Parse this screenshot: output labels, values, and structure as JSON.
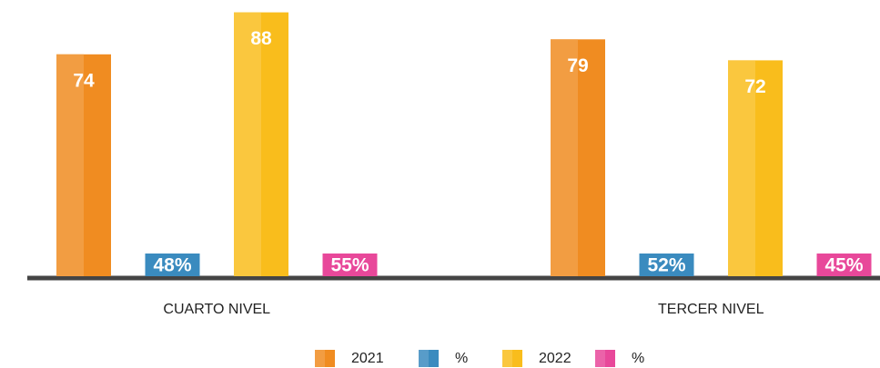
{
  "chart_data": {
    "type": "bar",
    "categories": [
      "CUARTO NIVEL",
      "TERCER NIVEL"
    ],
    "series": [
      {
        "name": "2021",
        "color": "#f08c21",
        "values": [
          74,
          79
        ]
      },
      {
        "name": "%",
        "color": "#3a8bbf",
        "values": [
          48,
          52
        ],
        "value_labels": [
          "48%",
          "52%"
        ]
      },
      {
        "name": "2022",
        "color": "#f9bd1c",
        "values": [
          88,
          72
        ]
      },
      {
        "name": "%",
        "color": "#e8489a",
        "values": [
          55,
          45
        ],
        "value_labels": [
          "55%",
          "45%"
        ]
      }
    ],
    "ylim": [
      0,
      90
    ]
  }
}
